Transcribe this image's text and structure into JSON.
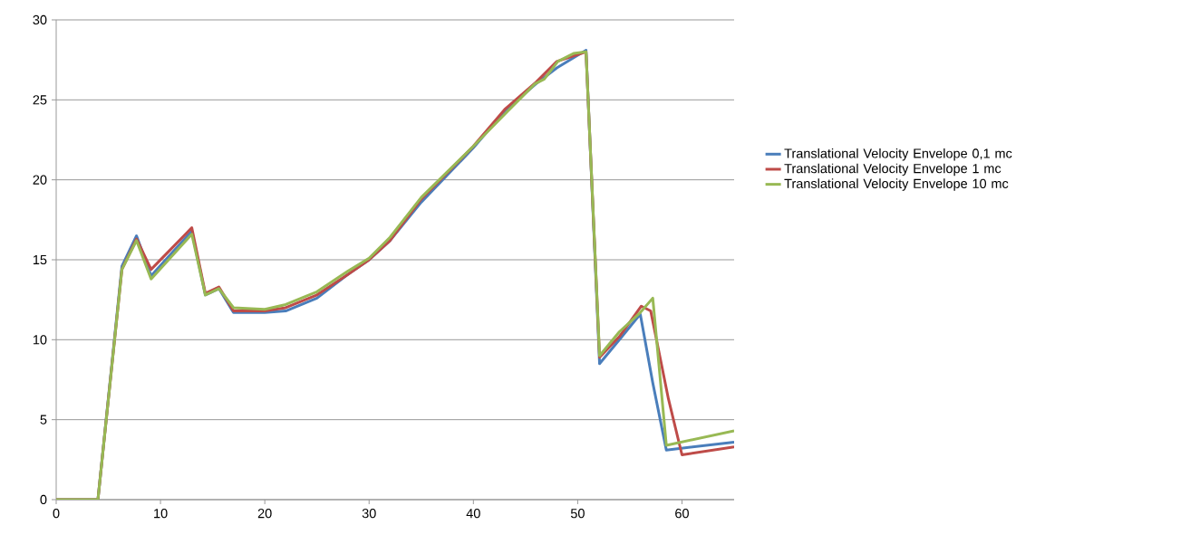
{
  "chart_data": {
    "type": "line",
    "xlim": [
      0,
      65
    ],
    "xticks": [
      0,
      10,
      20,
      30,
      40,
      50,
      60
    ],
    "ylim": [
      0,
      30
    ],
    "yticks": [
      0,
      5,
      10,
      15,
      20,
      25,
      30
    ],
    "grid": "y",
    "legend": "right",
    "marker": "none",
    "line_style": "solid",
    "series": [
      {
        "name": "Translational Velocity Envelope 0,1 mc",
        "color": "#4a7ebb",
        "x": [
          0,
          4,
          6.3,
          7.7,
          9.1,
          13.0,
          14.3,
          15.6,
          17.0,
          20,
          22,
          25,
          28,
          30,
          32,
          35,
          40,
          43,
          46,
          48,
          50.8,
          52.1,
          54,
          56.0,
          57.2,
          58.5,
          65
        ],
        "values": [
          0,
          0,
          14.6,
          16.5,
          14.0,
          16.8,
          12.8,
          13.2,
          11.7,
          11.7,
          11.8,
          12.6,
          14.1,
          15.0,
          16.2,
          18.6,
          22.0,
          24.3,
          26.0,
          27.0,
          28.1,
          8.5,
          10.0,
          11.6,
          7.3,
          3.1,
          3.6
        ]
      },
      {
        "name": "Translational Velocity Envelope 1 mc",
        "color": "#be4b48",
        "x": [
          0,
          4,
          6.3,
          7.7,
          9.1,
          13.0,
          14.3,
          15.6,
          17.0,
          20,
          22,
          25,
          28,
          30,
          32,
          35,
          40,
          43,
          46,
          48,
          50.8,
          52.1,
          54,
          56.1,
          57.0,
          58.7,
          60.0,
          65
        ],
        "values": [
          0,
          0,
          14.4,
          16.3,
          14.4,
          17.0,
          12.9,
          13.3,
          11.8,
          11.8,
          12.0,
          12.8,
          14.1,
          15.0,
          16.2,
          18.8,
          22.1,
          24.4,
          26.1,
          27.4,
          28.0,
          8.9,
          10.2,
          12.1,
          11.8,
          6.3,
          2.8,
          3.3
        ]
      },
      {
        "name": "Translational Velocity Envelope 10 mc",
        "color": "#98b954",
        "x": [
          0,
          4,
          6.3,
          7.7,
          9.1,
          13.0,
          14.3,
          15.6,
          17.0,
          20,
          22,
          25,
          28,
          30,
          32,
          35,
          40,
          43.3,
          45.9,
          46.8,
          48.1,
          49.6,
          50.8,
          52.1,
          54,
          56.0,
          57.2,
          58.5,
          65
        ],
        "values": [
          0,
          0,
          14.4,
          16.2,
          13.8,
          16.6,
          12.8,
          13.2,
          12.0,
          11.9,
          12.2,
          13.0,
          14.3,
          15.1,
          16.4,
          18.9,
          22.1,
          24.3,
          26.0,
          26.3,
          27.4,
          27.9,
          28.0,
          9.0,
          10.5,
          11.7,
          12.6,
          3.4,
          4.3
        ]
      }
    ]
  }
}
